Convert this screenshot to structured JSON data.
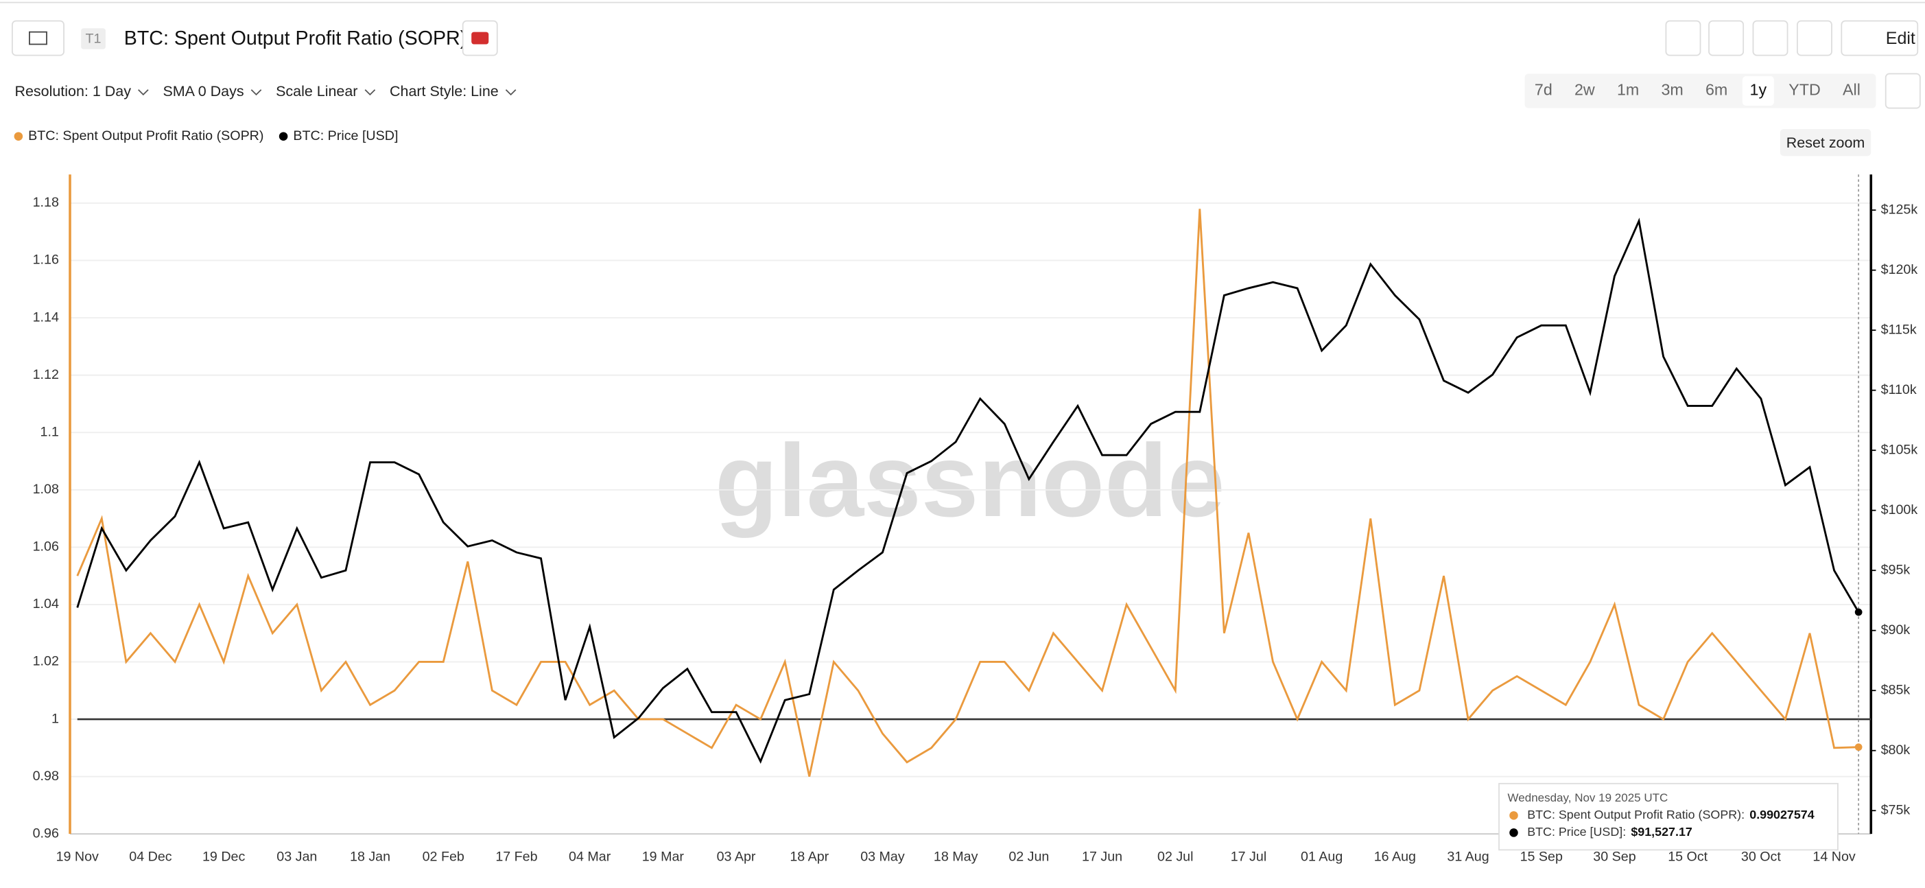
{
  "ui": {
    "tab": "T1",
    "title": "BTC: Spent Output Profit Ratio (SOPR)",
    "edit": "Edit",
    "controls": [
      "Resolution: 1 Day",
      "SMA 0 Days",
      "Scale Linear",
      "Chart Style: Line"
    ],
    "ranges": [
      "7d",
      "2w",
      "1m",
      "3m",
      "6m",
      "1y",
      "YTD",
      "All"
    ],
    "active_range": "1y",
    "reset_zoom": "Reset zoom",
    "watermark": "glassnode",
    "tooltip": {
      "title": "Wednesday, Nov 19 2025 UTC",
      "rows": [
        {
          "name": "BTC: Spent Output Profit Ratio (SOPR):",
          "value": "0.99027574"
        },
        {
          "name": "BTC: Price [USD]:",
          "value": "$91,527.17"
        }
      ]
    }
  },
  "chart_data": {
    "type": "line",
    "categories": [
      "19 Nov",
      null,
      null,
      "04 Dec",
      null,
      null,
      "19 Dec",
      null,
      null,
      "03 Jan",
      null,
      null,
      "18 Jan",
      null,
      null,
      "02 Feb",
      null,
      null,
      "17 Feb",
      null,
      null,
      "04 Mar",
      null,
      null,
      "19 Mar",
      null,
      null,
      "03 Apr",
      null,
      null,
      "18 Apr",
      null,
      null,
      "03 May",
      null,
      null,
      "18 May",
      null,
      null,
      "02 Jun",
      null,
      null,
      "17 Jun",
      null,
      null,
      "02 Jul",
      null,
      null,
      "17 Jul",
      null,
      null,
      "01 Aug",
      null,
      null,
      "16 Aug",
      null,
      null,
      "31 Aug",
      null,
      null,
      "15 Sep",
      null,
      null,
      "30 Sep",
      null,
      null,
      "15 Oct",
      null,
      null,
      "30 Oct",
      null,
      null,
      "14 Nov",
      null
    ],
    "series": [
      {
        "name": "BTC: Spent Output Profit Ratio (SOPR)",
        "color": "#ea9a3e",
        "values": [
          1.05,
          1.07,
          1.02,
          1.03,
          1.02,
          1.04,
          1.02,
          1.05,
          1.03,
          1.04,
          1.01,
          1.02,
          1.005,
          1.01,
          1.02,
          1.02,
          1.055,
          1.01,
          1.005,
          1.02,
          1.02,
          1.005,
          1.01,
          1.0,
          1.0,
          0.995,
          0.99,
          1.005,
          1.0,
          1.02,
          0.98,
          1.02,
          1.01,
          0.995,
          0.985,
          0.99,
          1.0,
          1.02,
          1.02,
          1.01,
          1.03,
          1.02,
          1.01,
          1.04,
          1.025,
          1.01,
          1.178,
          1.03,
          1.065,
          1.02,
          1.0,
          1.02,
          1.01,
          1.07,
          1.005,
          1.01,
          1.05,
          1.0,
          1.01,
          1.015,
          1.01,
          1.005,
          1.02,
          1.04,
          1.005,
          1.0,
          1.02,
          1.03,
          1.02,
          1.01,
          1.0,
          1.03,
          0.99,
          0.99027574
        ]
      },
      {
        "name": "BTC: Price [USD]",
        "color": "#000000",
        "axis": "y2",
        "values": [
          91900,
          98500,
          95000,
          97500,
          99500,
          104000,
          98500,
          99000,
          93400,
          98500,
          94400,
          95000,
          104000,
          104000,
          103000,
          99000,
          97000,
          97500,
          96500,
          96000,
          84200,
          90300,
          81100,
          82700,
          85200,
          86800,
          83200,
          83200,
          79100,
          84200,
          84700,
          93400,
          95000,
          96500,
          103100,
          104100,
          105700,
          109300,
          107200,
          102600,
          105700,
          108700,
          104600,
          104600,
          107200,
          108200,
          108200,
          117900,
          118500,
          119000,
          118500,
          113300,
          115400,
          120500,
          117900,
          115900,
          110800,
          109800,
          111300,
          114400,
          115400,
          115400,
          109800,
          119500,
          124100,
          112800,
          108700,
          108700,
          111800,
          109300,
          102100,
          103600,
          95000,
          91527.17
        ]
      }
    ],
    "ylim": [
      0.96,
      1.19
    ],
    "yticks": [
      0.96,
      0.98,
      1,
      1.02,
      1.04,
      1.06,
      1.08,
      1.1,
      1.12,
      1.14,
      1.16,
      1.18
    ],
    "y2lim": [
      73060,
      127970
    ],
    "y2ticks": [
      {
        "value": 75000,
        "label": "$75k"
      },
      {
        "value": 80000,
        "label": "$80k"
      },
      {
        "value": 85000,
        "label": "$85k"
      },
      {
        "value": 90000,
        "label": "$90k"
      },
      {
        "value": 95000,
        "label": "$95k"
      },
      {
        "value": 100000,
        "label": "$100k"
      },
      {
        "value": 105000,
        "label": "$105k"
      },
      {
        "value": 110000,
        "label": "$110k"
      },
      {
        "value": 115000,
        "label": "$115k"
      },
      {
        "value": 120000,
        "label": "$120k"
      },
      {
        "value": 125000,
        "label": "$125k"
      }
    ],
    "reference_line": 1,
    "grid": true
  }
}
